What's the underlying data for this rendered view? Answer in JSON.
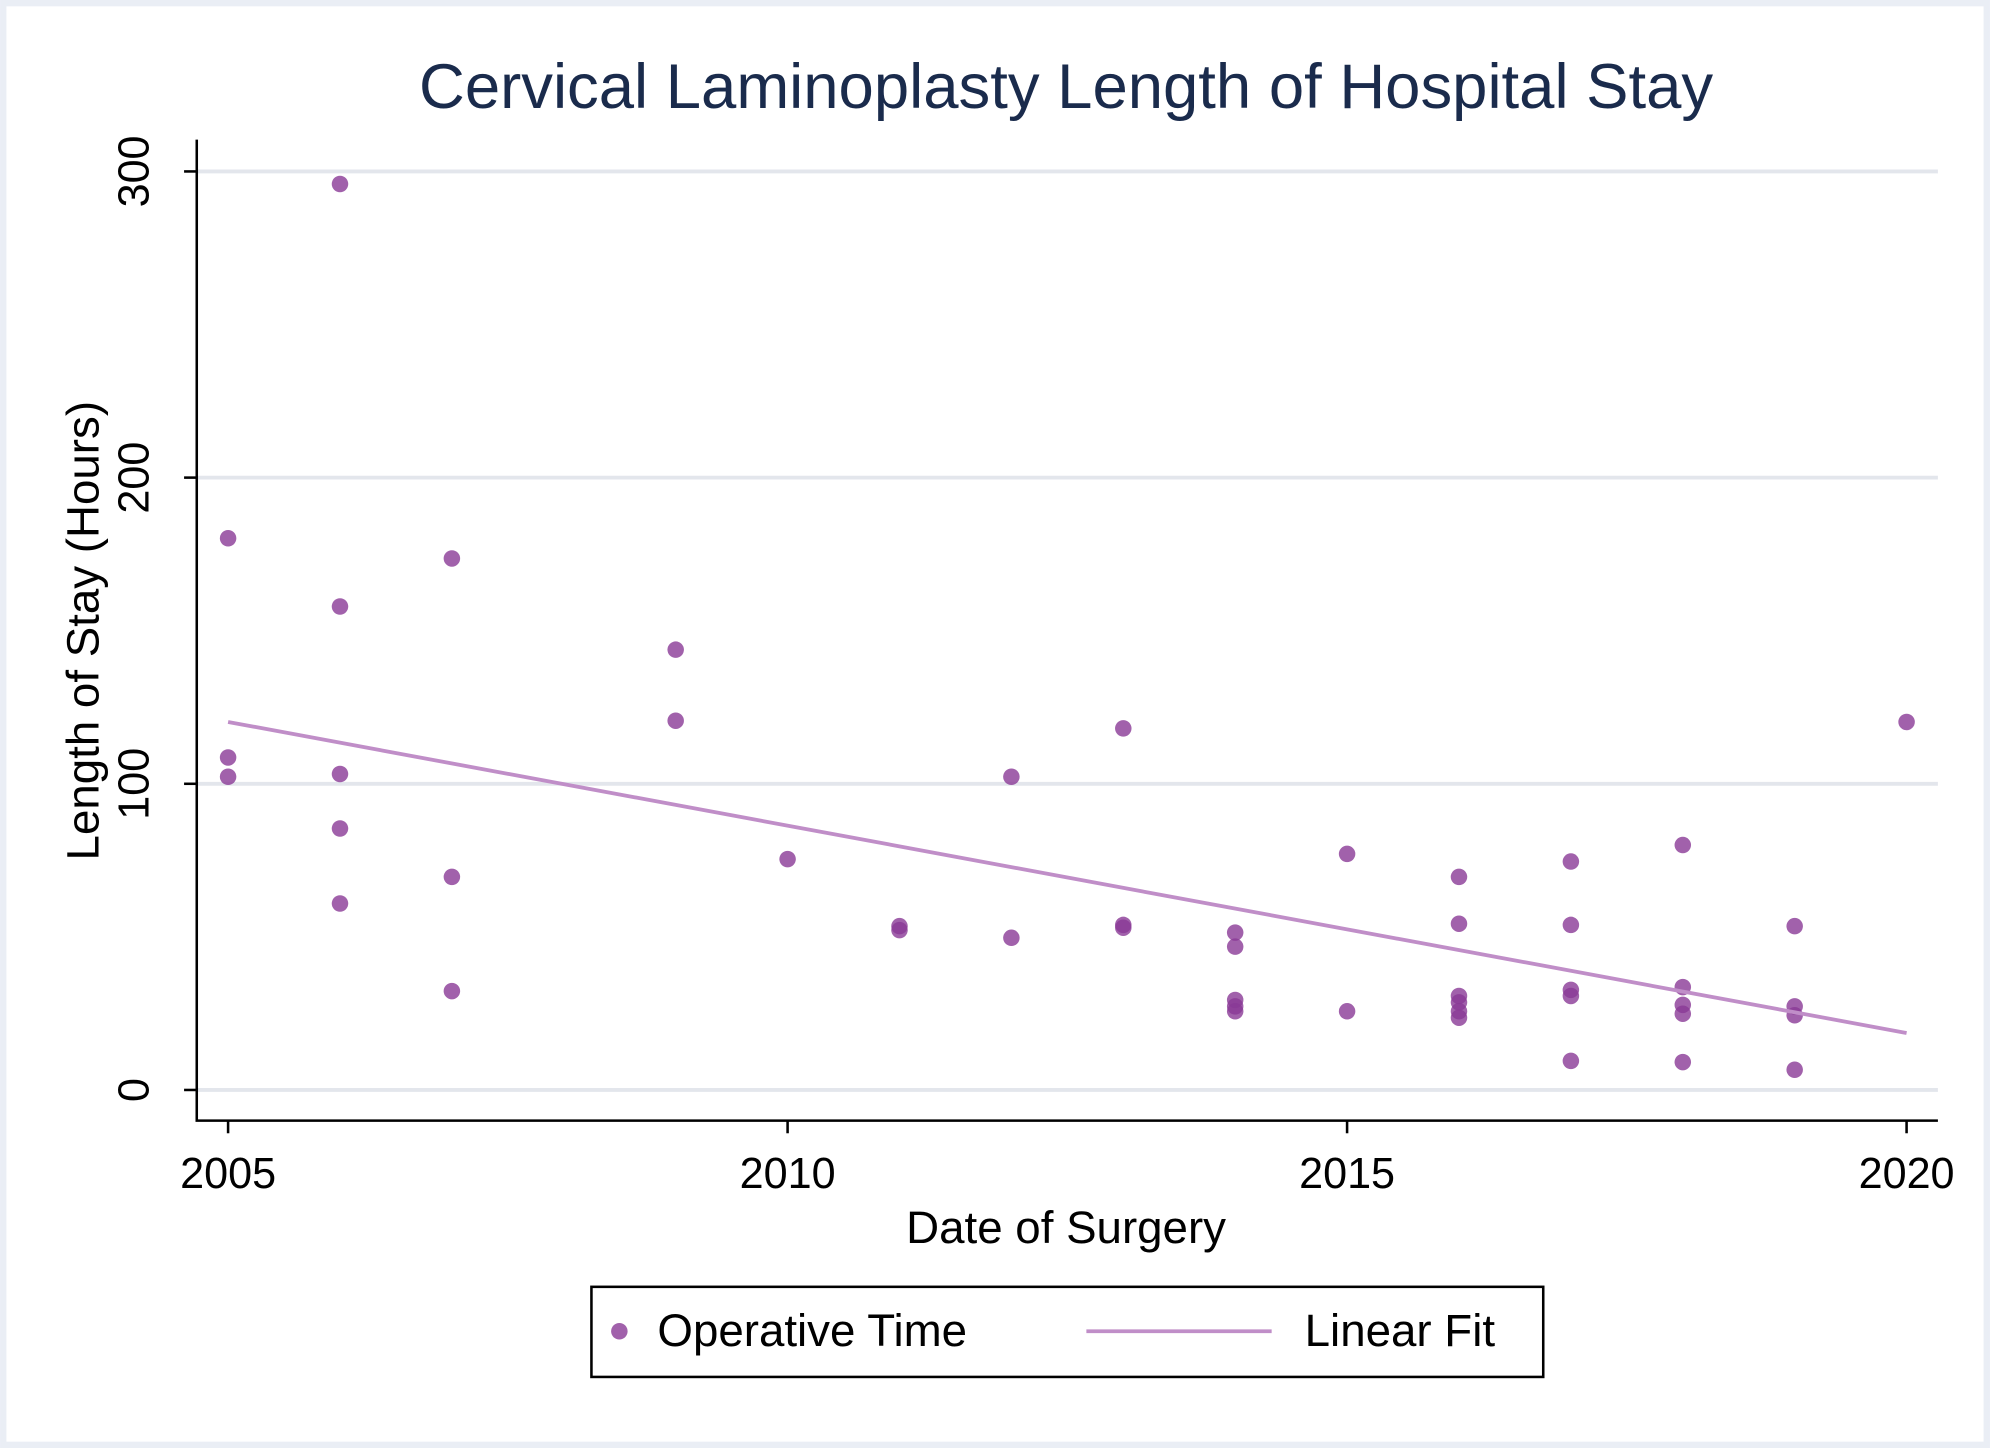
{
  "chart_data": {
    "type": "scatter",
    "title": "Cervical Laminoplasty Length of Hospital Stay",
    "x_label": "Date of Surgery",
    "y_label": "Length of Stay (Hours)",
    "xlim": [
      2004.72,
      2020.28
    ],
    "ylim": [
      -10,
      310.4
    ],
    "xticks": [
      2005,
      2010,
      2015,
      2020
    ],
    "yticks": [
      0,
      100,
      200,
      300
    ],
    "grid": true,
    "series": [
      {
        "name": "Operative Time",
        "type": "scatter",
        "color": "#8a3a96",
        "x": [
          2005,
          2005,
          2005,
          2006,
          2006,
          2006,
          2006,
          2006,
          2007,
          2007,
          2007,
          2009,
          2009,
          2010,
          2011,
          2011,
          2012,
          2012,
          2013,
          2013,
          2013,
          2014,
          2014,
          2014,
          2014,
          2014,
          2015,
          2015,
          2016,
          2016,
          2016,
          2016,
          2016,
          2016,
          2017,
          2017,
          2017,
          2017,
          2017,
          2018,
          2018,
          2018,
          2018,
          2018,
          2019,
          2019,
          2019,
          2019,
          2020
        ],
        "values": [
          180.2,
          108.6,
          102.3,
          295.9,
          157.9,
          103.2,
          85.4,
          60.9,
          173.6,
          69.6,
          32.3,
          143.8,
          120.6,
          75.4,
          53.5,
          52.2,
          102.3,
          49.7,
          118.1,
          53.9,
          53.0,
          51.4,
          46.8,
          29.4,
          27.3,
          25.7,
          77.1,
          25.7,
          69.6,
          54.3,
          30.7,
          28.6,
          25.7,
          23.6,
          74.6,
          53.9,
          32.7,
          30.7,
          9.5,
          80.0,
          33.6,
          27.8,
          24.9,
          9.1,
          53.5,
          27.3,
          24.4,
          6.6,
          120.2
        ]
      },
      {
        "name": "Linear Fit",
        "type": "line",
        "color": "#c08ec8",
        "x": [
          2005,
          2020
        ],
        "values": [
          120.2,
          18.6
        ]
      }
    ]
  }
}
